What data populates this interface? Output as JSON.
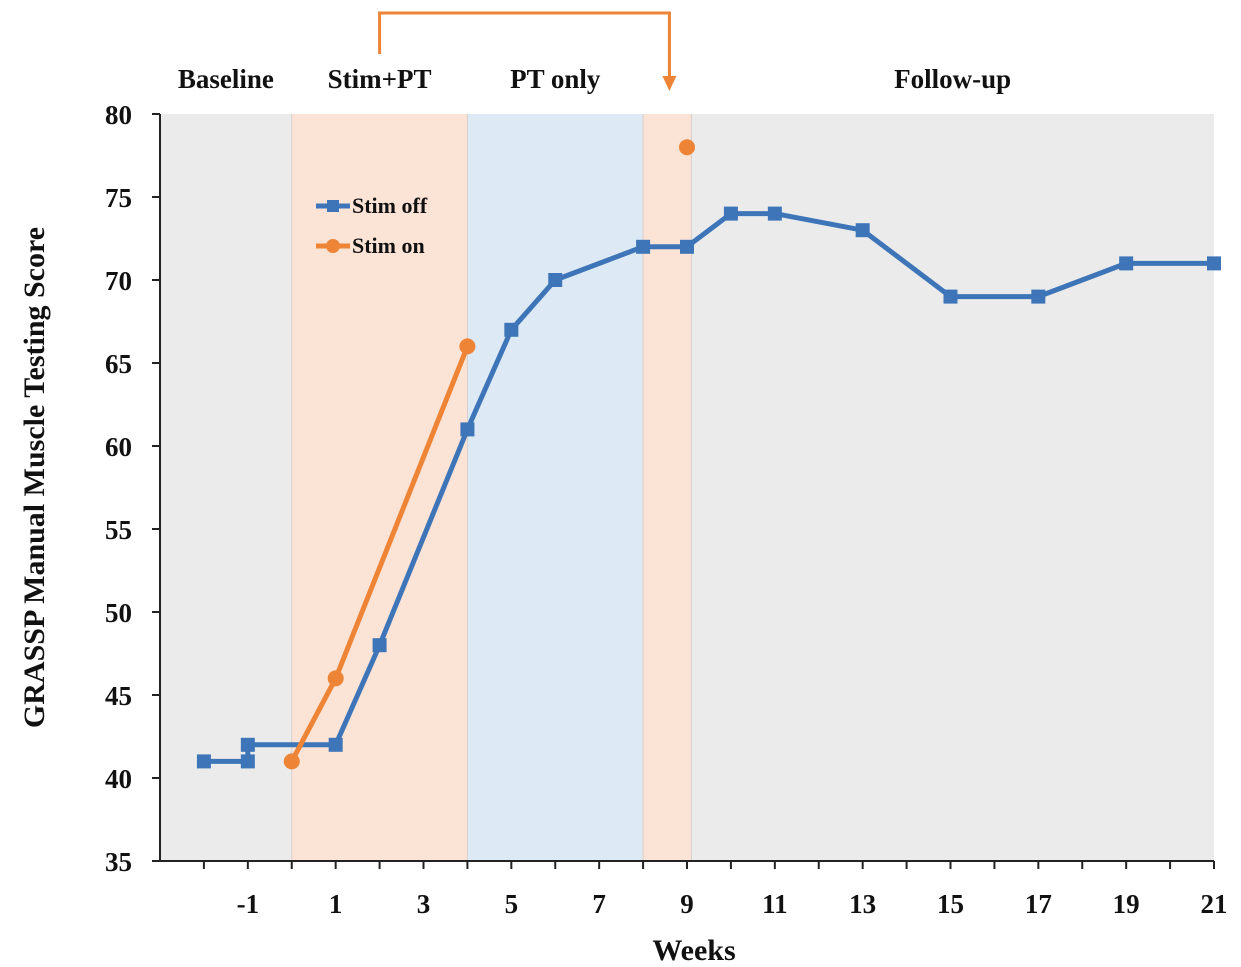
{
  "chart_data": {
    "type": "line",
    "xlabel": "Weeks",
    "ylabel": "GRASSP Manual Muscle Testing Score",
    "ylim": [
      35,
      80
    ],
    "yticks": [
      35,
      40,
      45,
      50,
      55,
      60,
      65,
      70,
      75,
      80
    ],
    "xlim": [
      -3,
      21
    ],
    "xticks": [
      -1,
      1,
      3,
      5,
      7,
      9,
      11,
      13,
      15,
      17,
      19,
      21
    ],
    "phases": [
      {
        "label": "Baseline",
        "x_start": -3,
        "x_end": 0,
        "color": "#ebebeb"
      },
      {
        "label": "Stim+PT",
        "x_start": 0,
        "x_end": 4,
        "color": "#fbe3d6"
      },
      {
        "label": "PT only",
        "x_start": 4,
        "x_end": 8,
        "color": "#dde9f5"
      },
      {
        "label": "",
        "x_start": 8,
        "x_end": 9.1,
        "color": "#fbe3d6"
      },
      {
        "label": "Follow-up",
        "x_start": 9.1,
        "x_end": 21,
        "color": "#ebebeb"
      }
    ],
    "series": [
      {
        "name": "Stim off",
        "color": "#3d75b8",
        "marker": "square",
        "points": [
          [
            -2,
            41
          ],
          [
            -1,
            41
          ],
          [
            -1,
            42
          ],
          [
            1,
            42
          ],
          [
            2,
            48
          ],
          [
            4,
            61
          ],
          [
            5,
            67
          ],
          [
            6,
            70
          ],
          [
            8,
            72
          ],
          [
            9,
            72
          ],
          [
            10,
            74
          ],
          [
            11,
            74
          ],
          [
            13,
            73
          ],
          [
            15,
            69
          ],
          [
            17,
            69
          ],
          [
            19,
            71
          ],
          [
            21,
            71
          ]
        ]
      },
      {
        "name": "Stim on",
        "color": "#ed8436",
        "marker": "circle",
        "segments": [
          [
            [
              0,
              41
            ],
            [
              1,
              46
            ],
            [
              4,
              66
            ]
          ],
          [
            [
              9,
              78
            ]
          ]
        ]
      }
    ],
    "annotation": {
      "type": "arrow",
      "from_x": 2,
      "to_x": 8.6,
      "color": "#ed8436"
    },
    "legend": {
      "placement": "top-left"
    },
    "grid": false
  }
}
